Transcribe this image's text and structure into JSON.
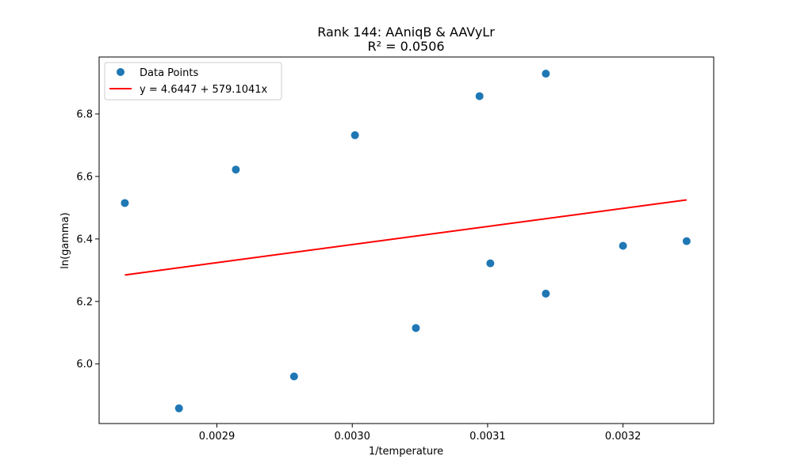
{
  "chart_data": {
    "type": "scatter",
    "title": "Rank 144: AAniqB & AAVyLr",
    "subtitle": "R² = 0.0506",
    "xlabel": "1/temperature",
    "ylabel": "ln(gamma)",
    "xlim": [
      0.002813,
      0.003267
    ],
    "ylim": [
      5.8093,
      6.9823
    ],
    "xticks": [
      0.0029,
      0.003,
      0.0031,
      0.0032
    ],
    "xtick_labels": [
      "0.0029",
      "0.0030",
      "0.0031",
      "0.0032"
    ],
    "yticks": [
      6.0,
      6.2,
      6.4,
      6.6,
      6.8
    ],
    "ytick_labels": [
      "6.0",
      "6.2",
      "6.4",
      "6.6",
      "6.8"
    ],
    "grid": false,
    "legend_position": "top-left",
    "series": [
      {
        "name": "Data Points",
        "kind": "scatter",
        "color": "#1f77b4",
        "points": [
          {
            "x": 0.002832,
            "y": 6.515
          },
          {
            "x": 0.002872,
            "y": 5.858
          },
          {
            "x": 0.002914,
            "y": 6.622
          },
          {
            "x": 0.002957,
            "y": 5.96
          },
          {
            "x": 0.003002,
            "y": 6.732
          },
          {
            "x": 0.003047,
            "y": 6.115
          },
          {
            "x": 0.003094,
            "y": 6.857
          },
          {
            "x": 0.003102,
            "y": 6.322
          },
          {
            "x": 0.003143,
            "y": 6.929
          },
          {
            "x": 0.003143,
            "y": 6.225
          },
          {
            "x": 0.0032,
            "y": 6.378
          },
          {
            "x": 0.003247,
            "y": 6.393
          }
        ]
      },
      {
        "name": "y = 4.6447 + 579.1041x",
        "kind": "line",
        "color": "#ff0000",
        "intercept": 4.6447,
        "slope": 579.1041,
        "x_range": [
          0.002832,
          0.003247
        ]
      }
    ]
  }
}
